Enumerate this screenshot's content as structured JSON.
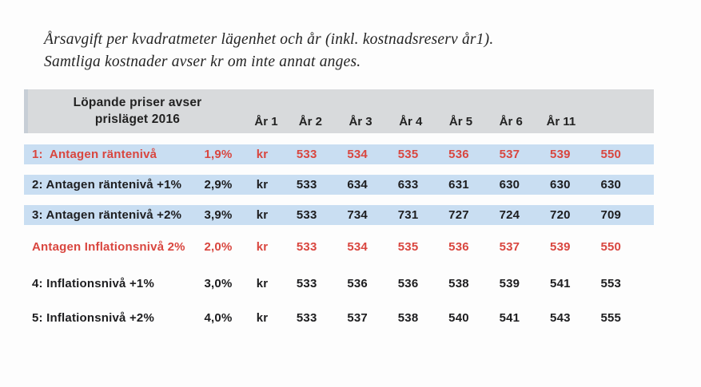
{
  "document": {
    "title_line1": "Årsavgift per kvadratmeter lägenhet och år (inkl. kostnadsreserv år1).",
    "title_line2": "Samtliga kostnader avser kr om inte annat anges."
  },
  "table": {
    "header": {
      "label_line1": "Löpande priser avser",
      "label_line2": "prisläget 2016",
      "year_columns": [
        "År 1",
        "År 2",
        "År 3",
        "År 4",
        "År 5",
        "År 6",
        "År 11"
      ]
    },
    "rows": [
      {
        "label": "1:  Antagen räntenivå",
        "rate": "1,9%",
        "unit": "kr",
        "values": [
          "533",
          "534",
          "535",
          "536",
          "537",
          "539",
          "550"
        ],
        "emphasis": true,
        "highlight": true
      },
      {
        "label": "2: Antagen räntenivå +1%",
        "rate": "2,9%",
        "unit": "kr",
        "values": [
          "533",
          "634",
          "633",
          "631",
          "630",
          "630",
          "630"
        ],
        "emphasis": false,
        "highlight": true
      },
      {
        "label": "3: Antagen räntenivå +2%",
        "rate": "3,9%",
        "unit": "kr",
        "values": [
          "533",
          "734",
          "731",
          "727",
          "724",
          "720",
          "709"
        ],
        "emphasis": false,
        "highlight": true
      },
      {
        "label": "Antagen Inflationsnivå 2%",
        "rate": "2,0%",
        "unit": "kr",
        "values": [
          "533",
          "534",
          "535",
          "536",
          "537",
          "539",
          "550"
        ],
        "emphasis": true,
        "highlight": false
      },
      {
        "label": "4: Inflationsnivå +1%",
        "rate": "3,0%",
        "unit": "kr",
        "values": [
          "533",
          "536",
          "536",
          "538",
          "539",
          "541",
          "553"
        ],
        "emphasis": false,
        "highlight": false
      },
      {
        "label": "5: Inflationsnivå +2%",
        "rate": "4,0%",
        "unit": "kr",
        "values": [
          "533",
          "537",
          "538",
          "540",
          "541",
          "543",
          "555"
        ],
        "emphasis": false,
        "highlight": false
      }
    ]
  },
  "colors": {
    "highlight_row_bg": "#c9def2",
    "header_bg": "#d8dadc",
    "emphasis_text": "#d9463f",
    "body_text": "#1d1d1f"
  }
}
